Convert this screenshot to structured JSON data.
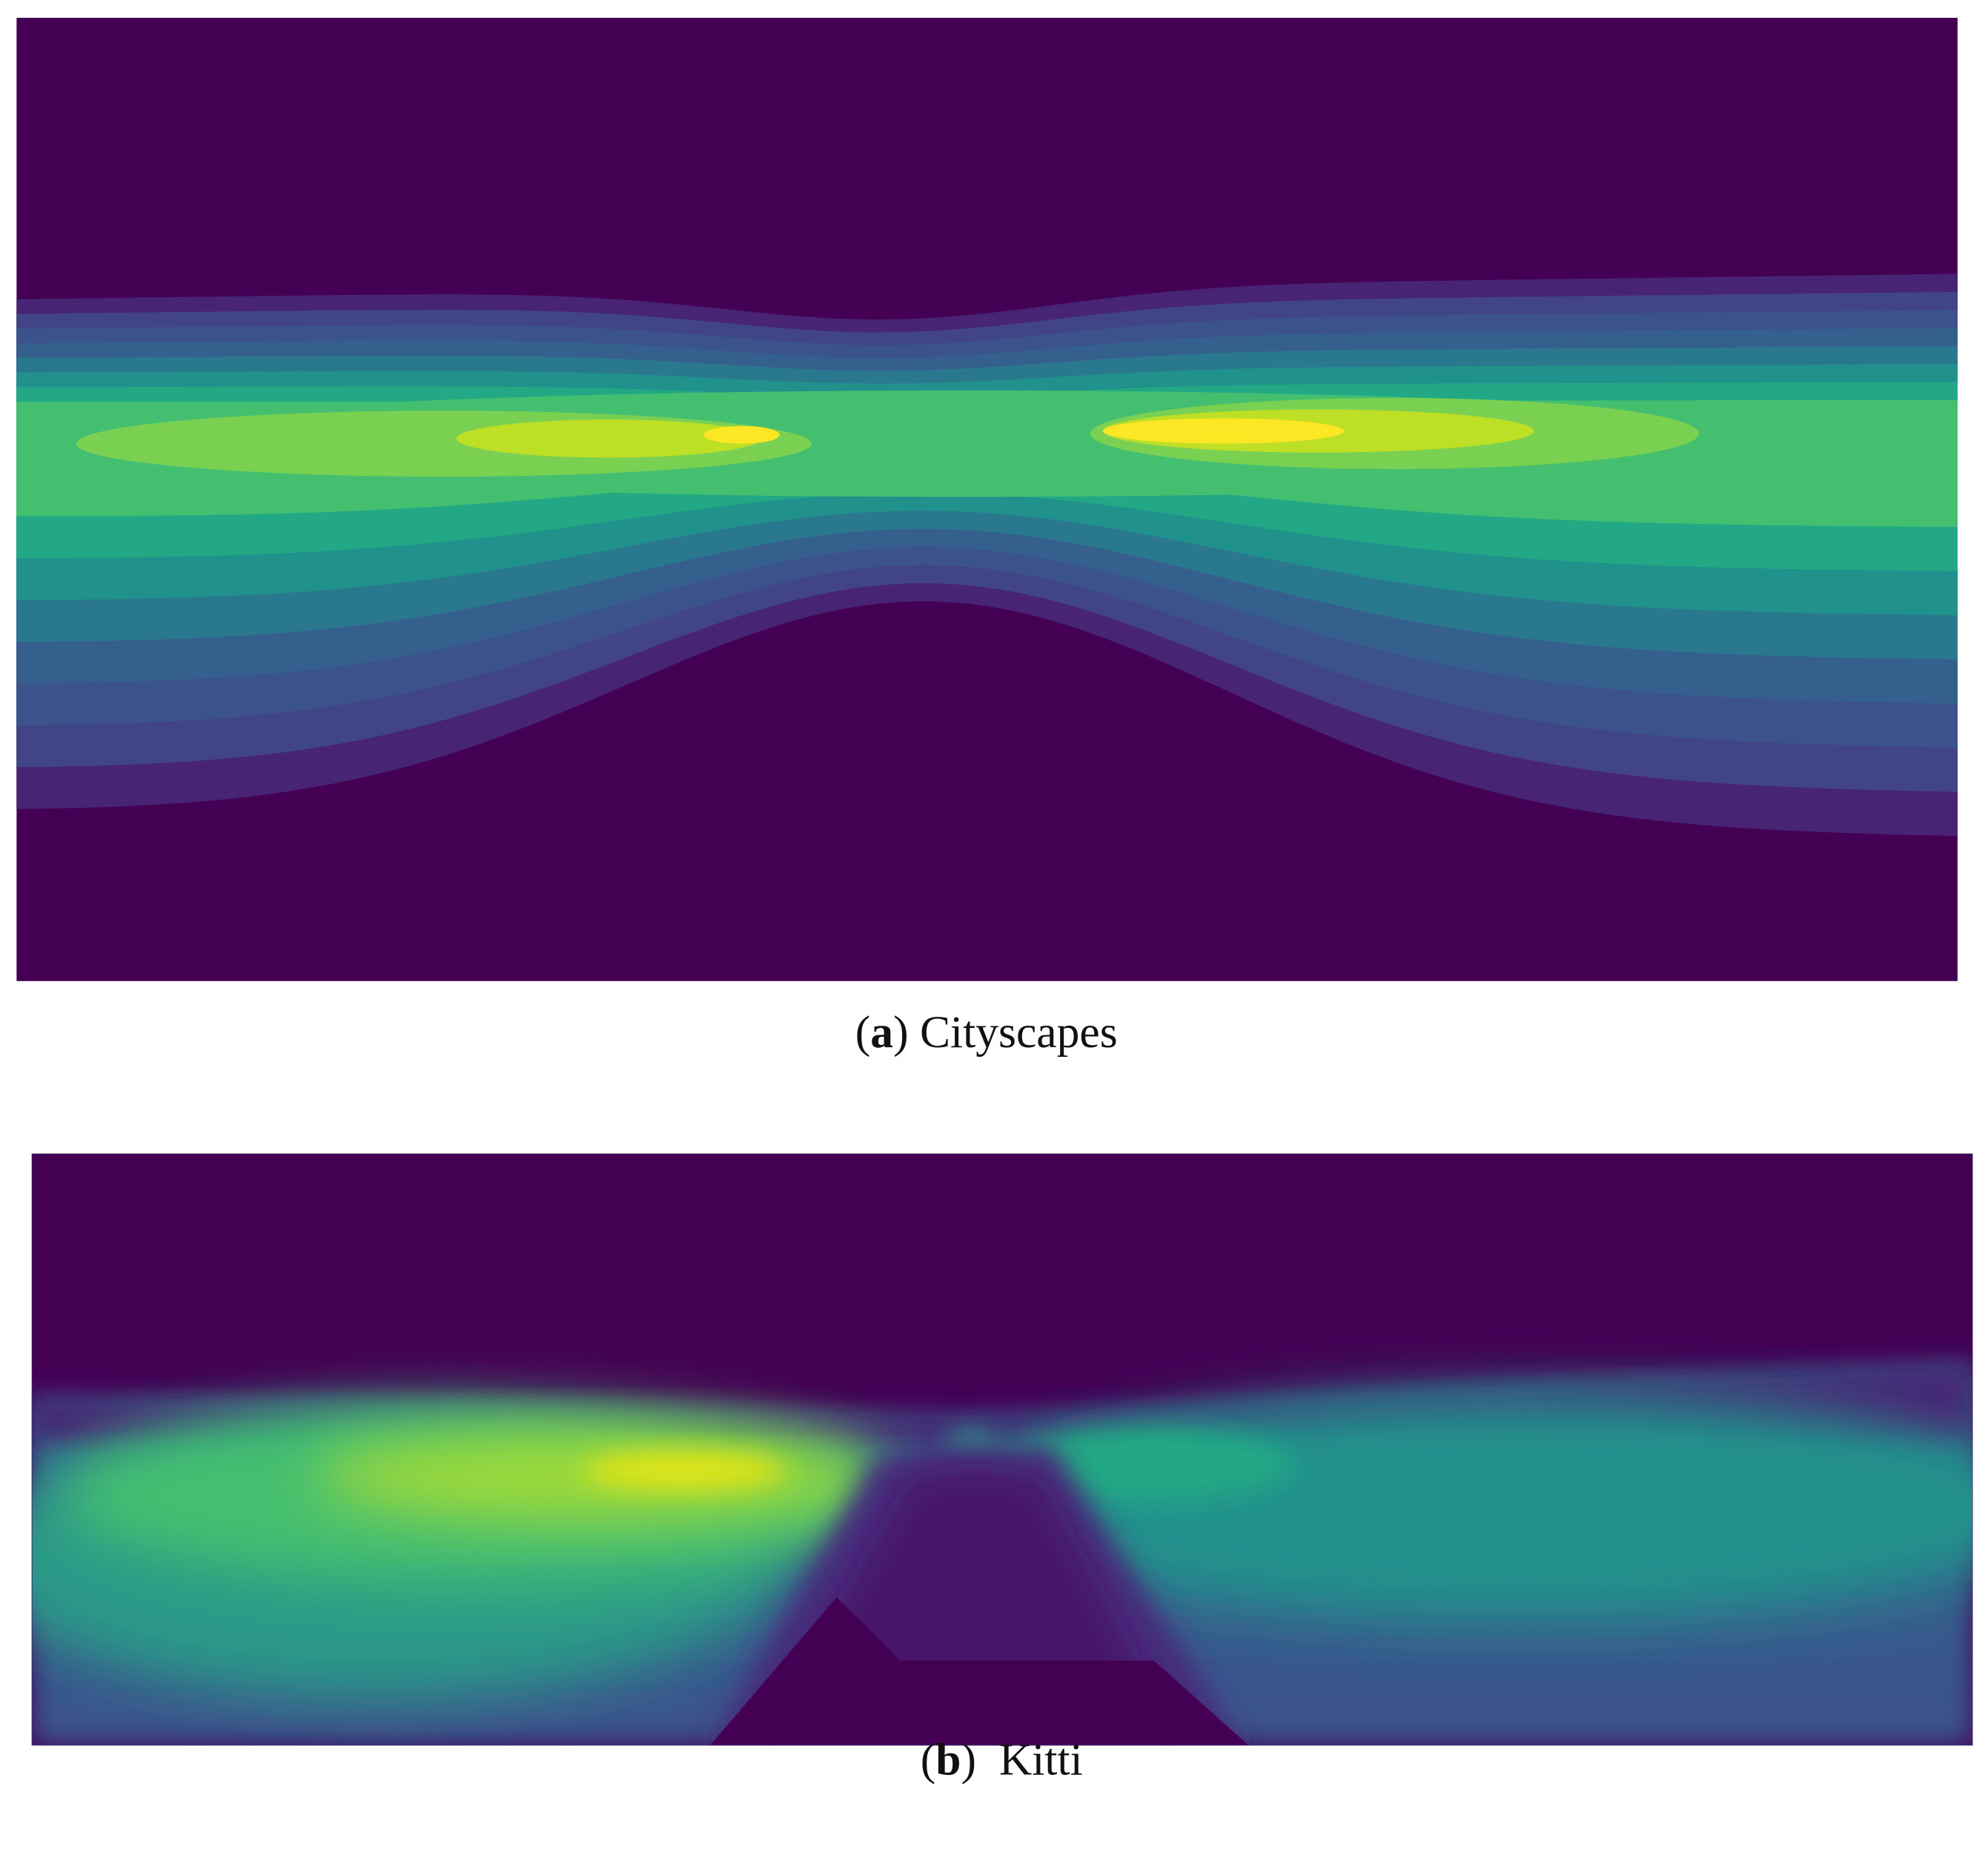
{
  "figures": [
    {
      "caption": {
        "parts": [
          "(",
          "a",
          ") Cityscapes"
        ]
      }
    },
    {
      "caption": {
        "parts": [
          "(",
          "b",
          ")  Kitti"
        ]
      }
    }
  ]
}
